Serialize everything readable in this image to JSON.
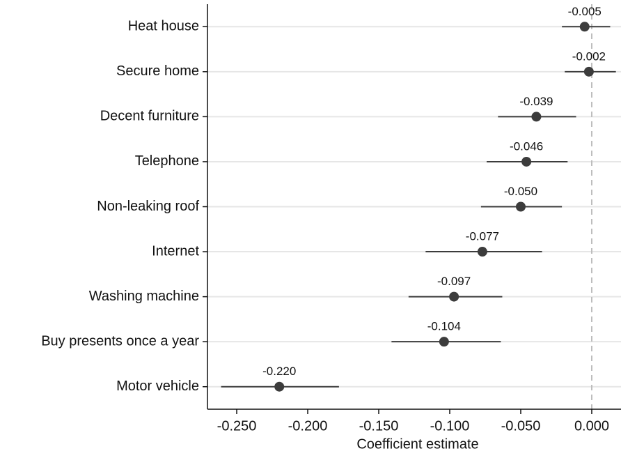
{
  "chart_data": {
    "type": "coefplot",
    "x_label": "Coefficient estimate",
    "categories": [
      "Heat house",
      "Secure home",
      "Decent furniture",
      "Telephone",
      "Non-leaking roof",
      "Internet",
      "Washing machine",
      "Buy presents once a year",
      "Motor vehicle"
    ],
    "values": [
      -0.005,
      -0.002,
      -0.039,
      -0.046,
      -0.05,
      -0.077,
      -0.097,
      -0.104,
      -0.22
    ],
    "value_labels": [
      "-0.005",
      "-0.002",
      "-0.039",
      "-0.046",
      "-0.050",
      "-0.077",
      "-0.097",
      "-0.104",
      "-0.220"
    ],
    "lower": [
      -0.021,
      -0.019,
      -0.066,
      -0.074,
      -0.078,
      -0.117,
      -0.129,
      -0.141,
      -0.261
    ],
    "upper": [
      0.013,
      0.017,
      -0.011,
      -0.017,
      -0.021,
      -0.035,
      -0.063,
      -0.064,
      -0.178
    ],
    "color": "#3c3c3c",
    "xlim": [
      -0.2706,
      0.0206
    ],
    "xticks": [
      {
        "value": -0.25,
        "label": "-0.250"
      },
      {
        "value": -0.2,
        "label": "-0.200"
      },
      {
        "value": -0.15,
        "label": "-0.150"
      },
      {
        "value": -0.1,
        "label": "-0.100"
      },
      {
        "value": -0.05,
        "label": "-0.050"
      },
      {
        "value": 0,
        "label": "0.000"
      }
    ],
    "reference_line": 0,
    "grid": true
  }
}
